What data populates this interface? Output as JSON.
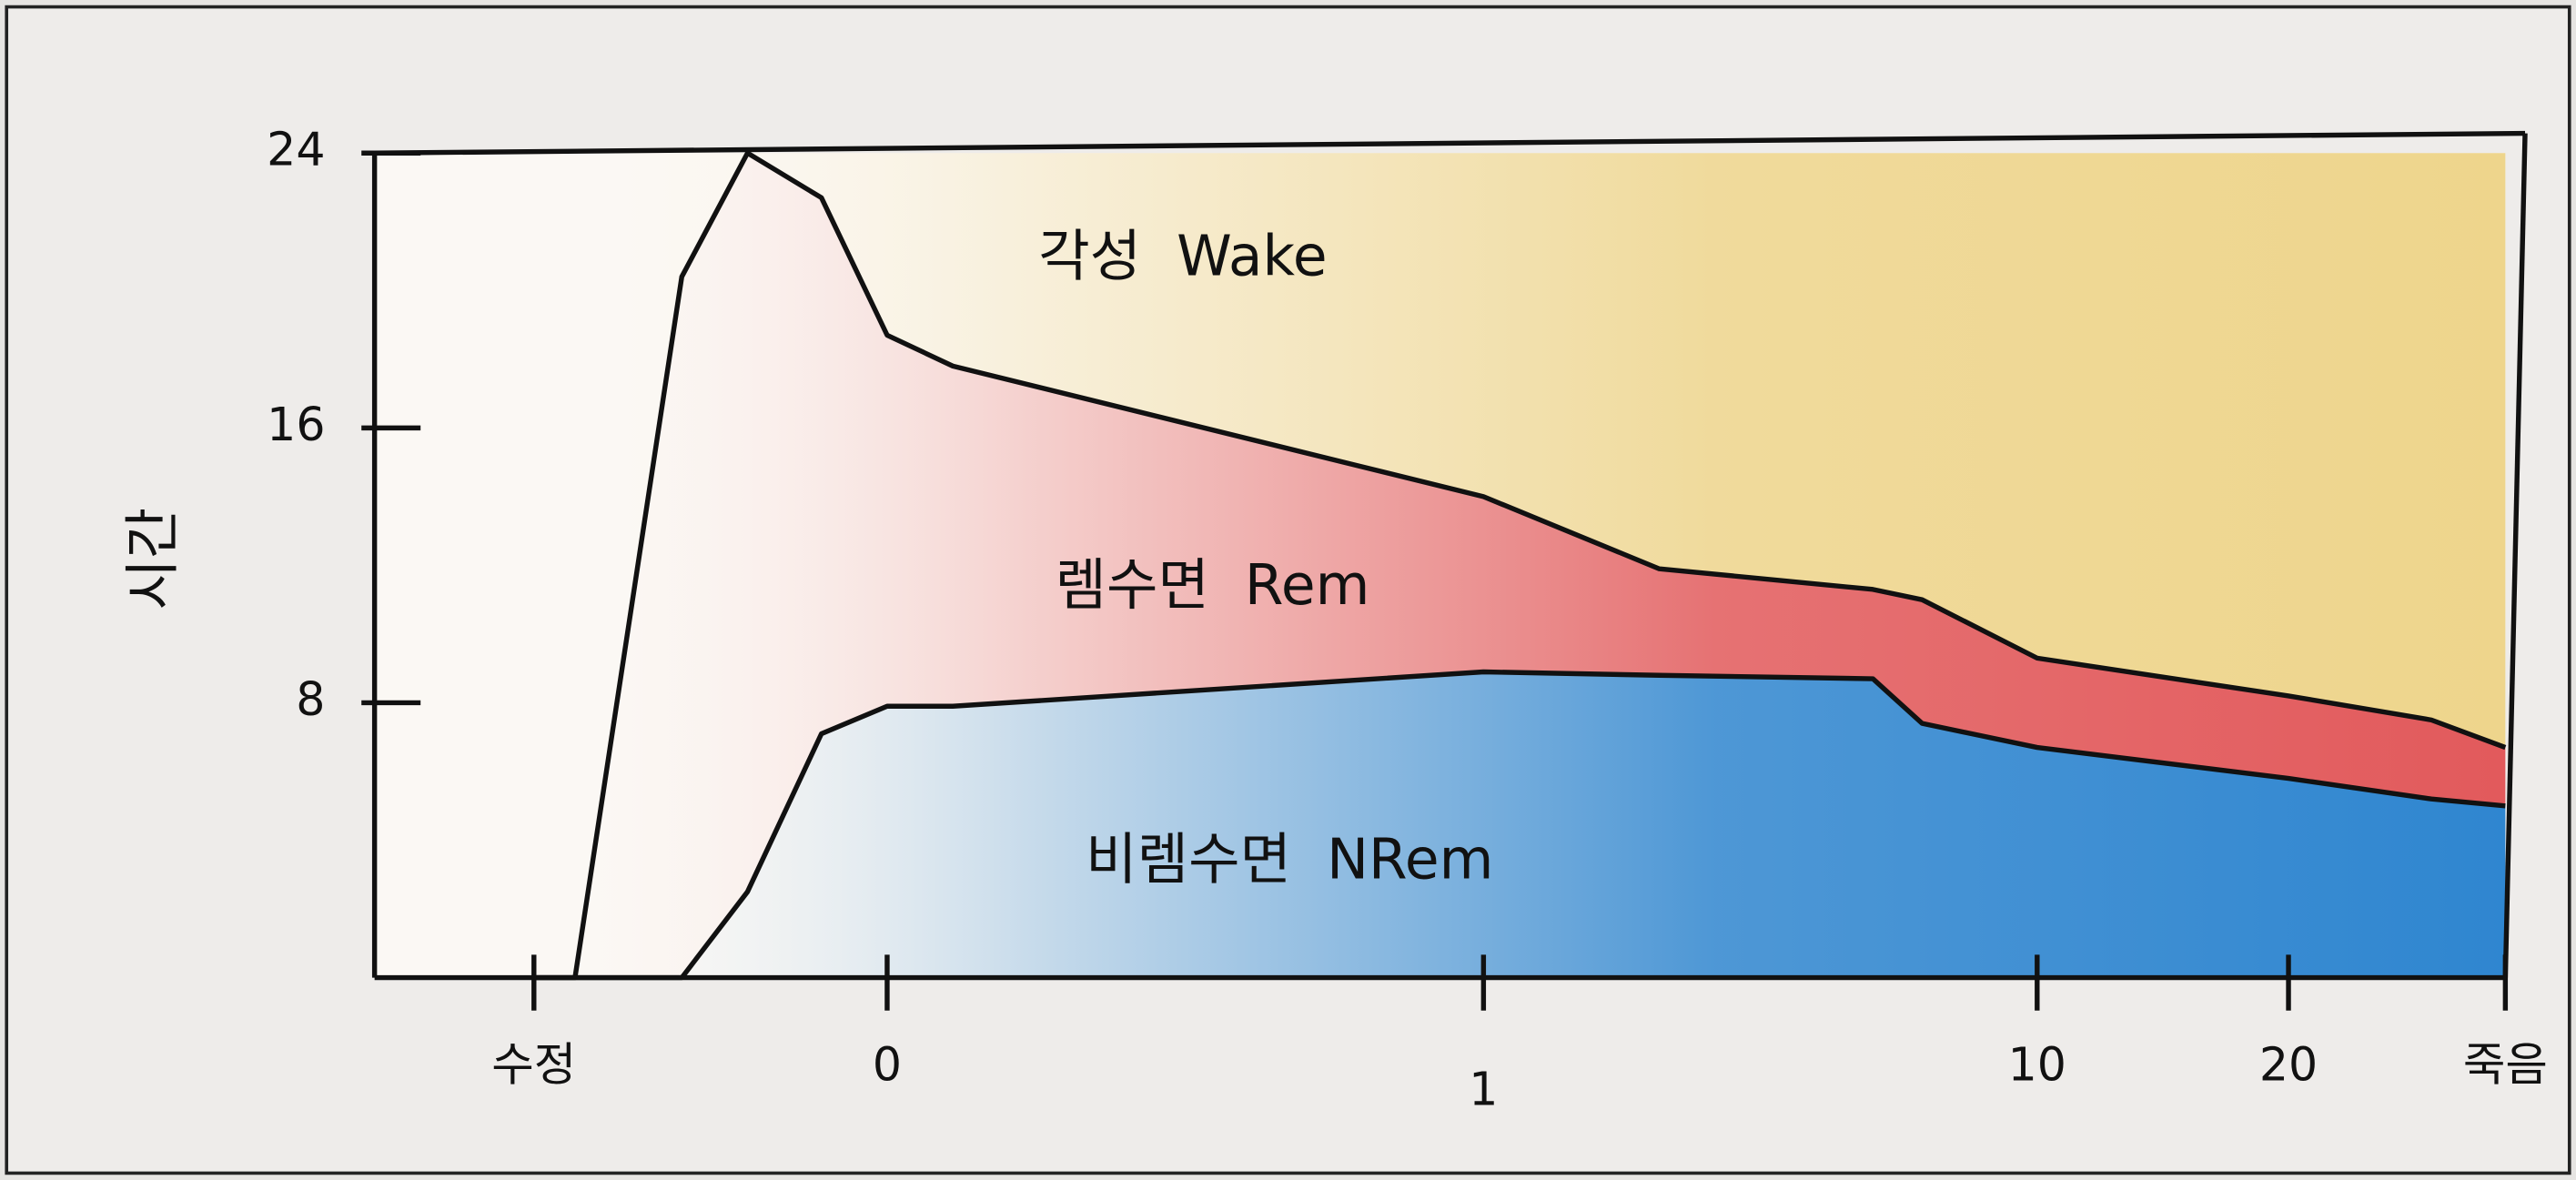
{
  "chart_data": {
    "type": "area",
    "stacked": true,
    "y_label": "시간",
    "categories": [
      "수정",
      null,
      null,
      null,
      null,
      "0",
      null,
      "1",
      null,
      null,
      null,
      "10",
      "20",
      null,
      "죽음"
    ],
    "series": [
      {
        "name": "비렘수면  NRem",
        "color": "#2f86d0",
        "values": [
          0,
          0,
          0,
          2.5,
          7.1,
          7.9,
          7.9,
          8.9,
          8.8,
          8.7,
          7.4,
          6.7,
          5.8,
          5.2,
          5.0
        ]
      },
      {
        "name": "렘수면  Rem",
        "color": "#e25a5c",
        "values": [
          0,
          0,
          20.4,
          21.5,
          15.6,
          10.8,
          9.9,
          5.1,
          3.1,
          2.6,
          3.6,
          2.6,
          2.4,
          2.3,
          1.7
        ]
      },
      {
        "name": "각성  Wake",
        "color": "#eed58c",
        "values": [
          24,
          24,
          3.6,
          0,
          1.3,
          5.3,
          6.2,
          10.0,
          12.1,
          12.7,
          13.0,
          14.7,
          15.8,
          16.5,
          17.3
        ]
      }
    ],
    "ylim": [
      0,
      24
    ],
    "yticks": [
      8,
      16,
      24
    ],
    "grid": false
  }
}
